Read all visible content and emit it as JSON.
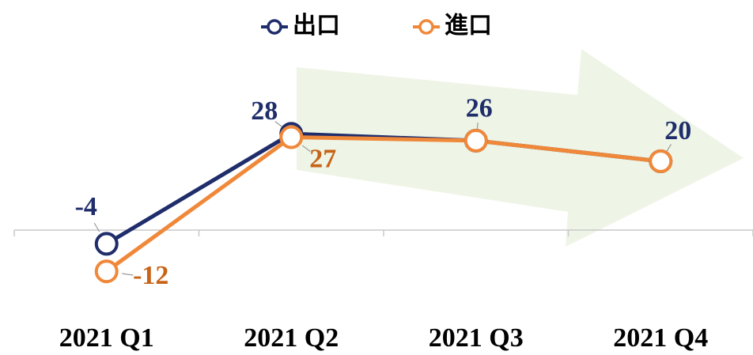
{
  "chart_data": {
    "type": "line",
    "categories": [
      "2021 Q1",
      "2021 Q2",
      "2021 Q3",
      "2021 Q4"
    ],
    "series": [
      {
        "name": "出口",
        "color": "#1f2d6b",
        "values": [
          -4,
          28,
          26,
          20
        ]
      },
      {
        "name": "進口",
        "color": "#f0883a",
        "values": [
          -12,
          27,
          26,
          20
        ]
      }
    ],
    "ylim": [
      -20,
      40
    ],
    "legend": "top"
  }
}
